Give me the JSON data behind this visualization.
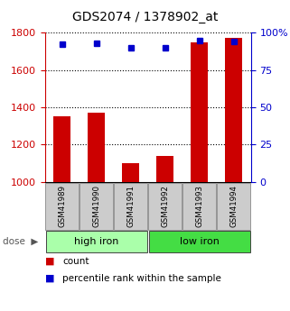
{
  "title": "GDS2074 / 1378902_at",
  "samples": [
    "GSM41989",
    "GSM41990",
    "GSM41991",
    "GSM41992",
    "GSM41993",
    "GSM41994"
  ],
  "counts": [
    1350,
    1370,
    1100,
    1140,
    1750,
    1770
  ],
  "percentile_ranks": [
    92,
    93,
    90,
    90,
    95,
    94
  ],
  "ylim_left": [
    1000,
    1800
  ],
  "ylim_right": [
    0,
    100
  ],
  "yticks_left": [
    1000,
    1200,
    1400,
    1600,
    1800
  ],
  "yticks_right": [
    0,
    25,
    50,
    75,
    100
  ],
  "bar_color": "#cc0000",
  "dot_color": "#0000cc",
  "groups": [
    {
      "label": "high iron",
      "indices": [
        0,
        1,
        2
      ],
      "color": "#aaffaa"
    },
    {
      "label": "low iron",
      "indices": [
        3,
        4,
        5
      ],
      "color": "#44dd44"
    }
  ],
  "dose_label": "dose",
  "legend_count_label": "count",
  "legend_pct_label": "percentile rank within the sample",
  "background_color": "#ffffff",
  "sample_box_color": "#cccccc",
  "sample_box_edge": "#888888"
}
